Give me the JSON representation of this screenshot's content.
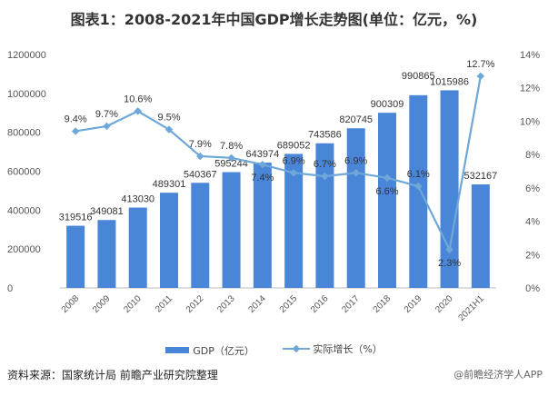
{
  "chart_data": {
    "type": "bar+line",
    "title": "图表1：2008-2021年中国GDP增长走势图(单位：亿元，%)",
    "categories": [
      "2008",
      "2009",
      "2010",
      "2011",
      "2012",
      "2013",
      "2014",
      "2015",
      "2016",
      "2017",
      "2018",
      "2019",
      "2020",
      "2021H1"
    ],
    "series": [
      {
        "name": "GDP（亿元）",
        "type": "bar",
        "axis": "left",
        "color": "#4a86d8",
        "values": [
          319516,
          349081,
          413030,
          489301,
          540367,
          595244,
          643974,
          689052,
          743586,
          820745,
          900309,
          990865,
          1015986,
          532167
        ]
      },
      {
        "name": "实际增长（%）",
        "type": "line",
        "axis": "right",
        "color": "#6fa8d8",
        "values": [
          9.4,
          9.7,
          10.6,
          9.5,
          7.9,
          7.8,
          7.4,
          6.9,
          6.7,
          6.9,
          6.6,
          6.1,
          2.3,
          12.7
        ]
      }
    ],
    "y_left": {
      "range": [
        0,
        1200000
      ],
      "ticks": [
        "0",
        "200000",
        "400000",
        "600000",
        "800000",
        "1000000",
        "1200000"
      ]
    },
    "y_right": {
      "range": [
        0,
        14
      ],
      "ticks": [
        "0%",
        "2%",
        "4%",
        "6%",
        "8%",
        "10%",
        "12%",
        "14%"
      ]
    },
    "grid": false,
    "legend_position": "bottom"
  },
  "footer": {
    "source": "资料来源：国家统计局 前瞻产业研究院整理",
    "watermark": "@前瞻经济学人APP"
  }
}
